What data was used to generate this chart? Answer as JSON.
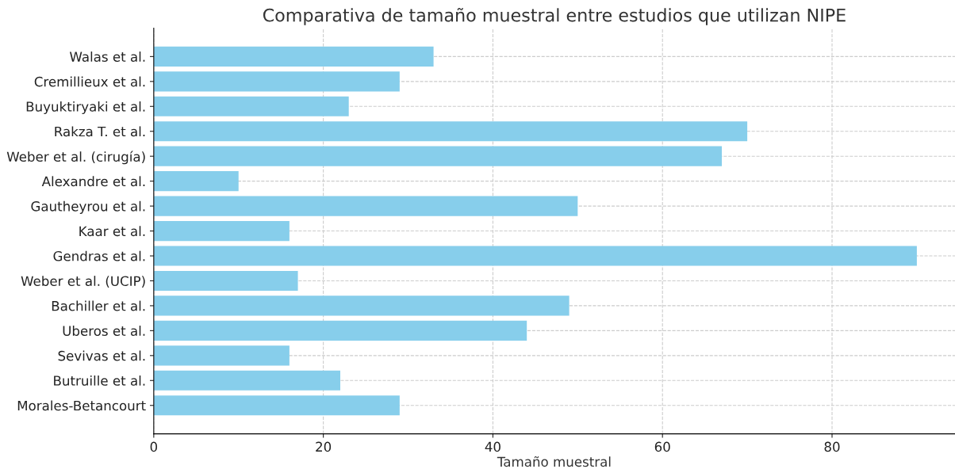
{
  "chart_data": {
    "type": "bar",
    "orientation": "horizontal",
    "title": "Comparativa de tamaño muestral entre estudios que utilizan NIPE",
    "xlabel": "Tamaño muestral",
    "categories": [
      "Walas et al.",
      "Cremillieux et al.",
      "Buyuktiryaki et al.",
      "Rakza T. et al.",
      "Weber et al. (cirugía)",
      "Alexandre et al.",
      "Gautheyrou et al.",
      "Kaar et al.",
      "Gendras et al.",
      "Weber et al. (UCIP)",
      "Bachiller et al.",
      "Uberos et al.",
      "Sevivas et al.",
      "Butruille et al.",
      "Morales-Betancourt"
    ],
    "values": [
      33,
      29,
      23,
      70,
      67,
      10,
      50,
      16,
      90,
      17,
      49,
      44,
      16,
      22,
      29
    ],
    "color": "#87ceeb",
    "xlim": [
      0,
      94.5
    ],
    "xticks": [
      0,
      20,
      40,
      60,
      80
    ],
    "grid": true
  }
}
